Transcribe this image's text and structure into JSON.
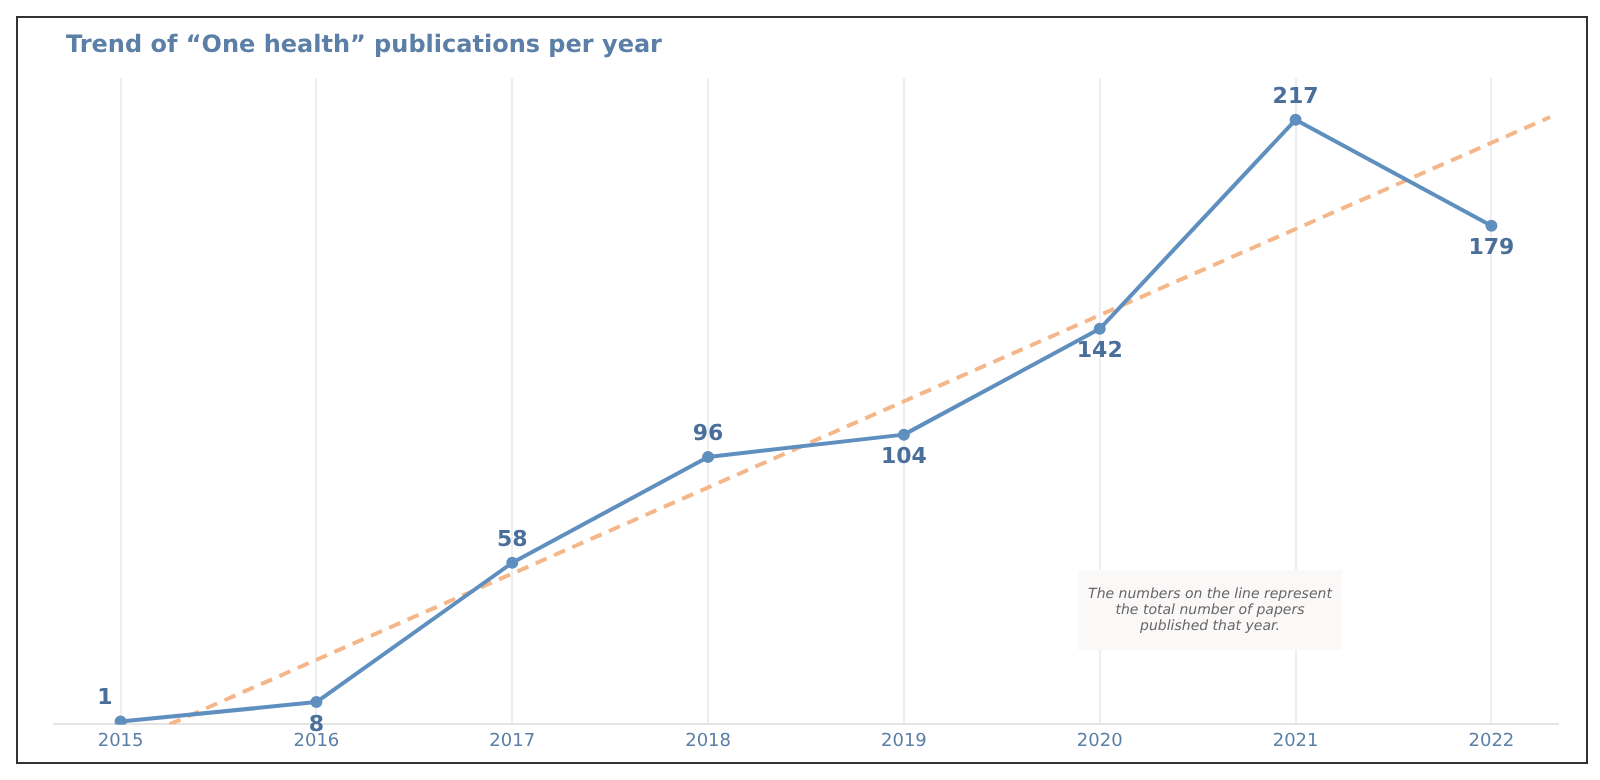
{
  "chart_data": {
    "type": "line",
    "title": "Trend of “One health” publications per year",
    "x": [
      2015,
      2016,
      2017,
      2018,
      2019,
      2020,
      2021,
      2022
    ],
    "series": [
      {
        "color": "#5f8fbf",
        "marker": "circle",
        "values": [
          1,
          8,
          58,
          96,
          104,
          142,
          217,
          179
        ],
        "value_labels": [
          "1",
          "8",
          "58",
          "96",
          "104",
          "142",
          "217",
          "179"
        ]
      },
      {
        "type": "line",
        "color": "#f5b78a",
        "line_style": "dashed",
        "x": [
          2015.25,
          2022.3
        ],
        "values": [
          0,
          218
        ]
      }
    ],
    "xlim": [
      2014.66,
      2022.34
    ],
    "xticks": [
      2015,
      2016,
      2017,
      2018,
      2019,
      2020,
      2021,
      2022
    ],
    "ylim": [
      0,
      232
    ],
    "grid": "x",
    "tick_labels": "x",
    "legend": false,
    "annotations": [
      "The numbers on the line represent the total number of papers published that year."
    ]
  }
}
